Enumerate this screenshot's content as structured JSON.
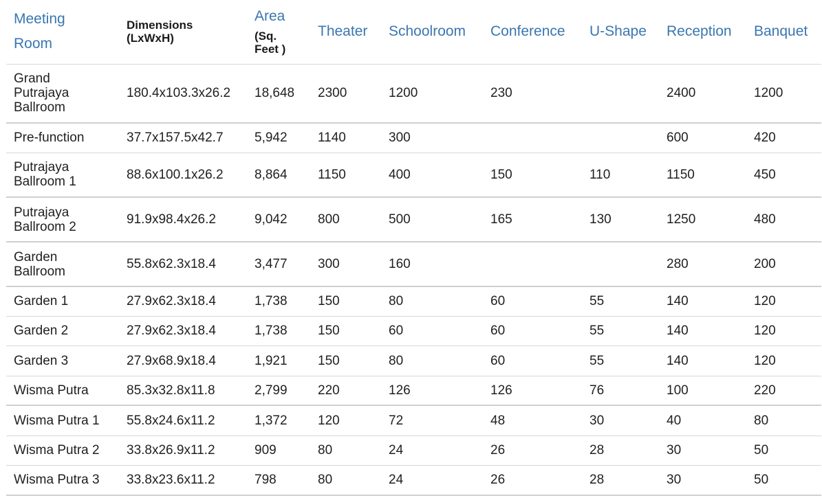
{
  "headers": {
    "room_line1": "Meeting",
    "room_line2": "Room",
    "dimensions_line1": "Dimensions",
    "dimensions_line2": "(LxWxH)",
    "area_line1": "Area",
    "area_line2": "(Sq.",
    "area_line3": "Feet )",
    "theater": "Theater",
    "schoolroom": "Schoolroom",
    "conference": "Conference",
    "ushape": "U-Shape",
    "reception": "Reception",
    "banquet": "Banquet"
  },
  "rows": [
    {
      "room_line1": "Grand",
      "room_line2": "Putrajaya",
      "room_line3": "Ballroom",
      "dimensions": "180.4x103.3x26.2",
      "area": "18,648",
      "theater": "2300",
      "schoolroom": "1200",
      "conference": "230",
      "ushape": "",
      "reception": "2400",
      "banquet": "1200"
    },
    {
      "room_line1": "Pre-function",
      "room_line2": "",
      "room_line3": "",
      "dimensions": "37.7x157.5x42.7",
      "area": "5,942",
      "theater": "1140",
      "schoolroom": "300",
      "conference": "",
      "ushape": "",
      "reception": "600",
      "banquet": "420"
    },
    {
      "room_line1": "Putrajaya",
      "room_line2": "Ballroom 1",
      "room_line3": "",
      "dimensions": "88.6x100.1x26.2",
      "area": "8,864",
      "theater": "1150",
      "schoolroom": "400",
      "conference": "150",
      "ushape": "110",
      "reception": "1150",
      "banquet": "450"
    },
    {
      "room_line1": "Putrajaya",
      "room_line2": "Ballroom 2",
      "room_line3": "",
      "dimensions": "91.9x98.4x26.2",
      "area": "9,042",
      "theater": "800",
      "schoolroom": "500",
      "conference": "165",
      "ushape": "130",
      "reception": "1250",
      "banquet": "480"
    },
    {
      "room_line1": "Garden",
      "room_line2": "Ballroom",
      "room_line3": "",
      "dimensions": "55.8x62.3x18.4",
      "area": "3,477",
      "theater": "300",
      "schoolroom": "160",
      "conference": "",
      "ushape": "",
      "reception": "280",
      "banquet": "200"
    },
    {
      "room_line1": "Garden 1",
      "room_line2": "",
      "room_line3": "",
      "dimensions": "27.9x62.3x18.4",
      "area": "1,738",
      "theater": "150",
      "schoolroom": "80",
      "conference": "60",
      "ushape": "55",
      "reception": "140",
      "banquet": "120"
    },
    {
      "room_line1": "Garden 2",
      "room_line2": "",
      "room_line3": "",
      "dimensions": "27.9x62.3x18.4",
      "area": "1,738",
      "theater": "150",
      "schoolroom": "60",
      "conference": "60",
      "ushape": "55",
      "reception": "140",
      "banquet": "120"
    },
    {
      "room_line1": "Garden 3",
      "room_line2": "",
      "room_line3": "",
      "dimensions": "27.9x68.9x18.4",
      "area": "1,921",
      "theater": "150",
      "schoolroom": "80",
      "conference": "60",
      "ushape": "55",
      "reception": "140",
      "banquet": "120"
    },
    {
      "room_line1": "Wisma Putra",
      "room_line2": "",
      "room_line3": "",
      "dimensions": "85.3x32.8x11.8",
      "area": "2,799",
      "theater": "220",
      "schoolroom": "126",
      "conference": "126",
      "ushape": "76",
      "reception": "100",
      "banquet": "220"
    },
    {
      "room_line1": "Wisma Putra 1",
      "room_line2": "",
      "room_line3": "",
      "dimensions": "55.8x24.6x11.2",
      "area": "1,372",
      "theater": "120",
      "schoolroom": "72",
      "conference": "48",
      "ushape": "30",
      "reception": "40",
      "banquet": "80"
    },
    {
      "room_line1": "Wisma Putra 2",
      "room_line2": "",
      "room_line3": "",
      "dimensions": "33.8x26.9x11.2",
      "area": "909",
      "theater": "80",
      "schoolroom": "24",
      "conference": "26",
      "ushape": "28",
      "reception": "30",
      "banquet": "50"
    },
    {
      "room_line1": "Wisma Putra 3",
      "room_line2": "",
      "room_line3": "",
      "dimensions": "33.8x23.6x11.2",
      "area": "798",
      "theater": "80",
      "schoolroom": "24",
      "conference": "26",
      "ushape": "28",
      "reception": "30",
      "banquet": "50"
    }
  ],
  "colors": {
    "header_text": "#3a76b0",
    "body_text": "#1f1f1f",
    "rule": "#d8d8d8"
  }
}
